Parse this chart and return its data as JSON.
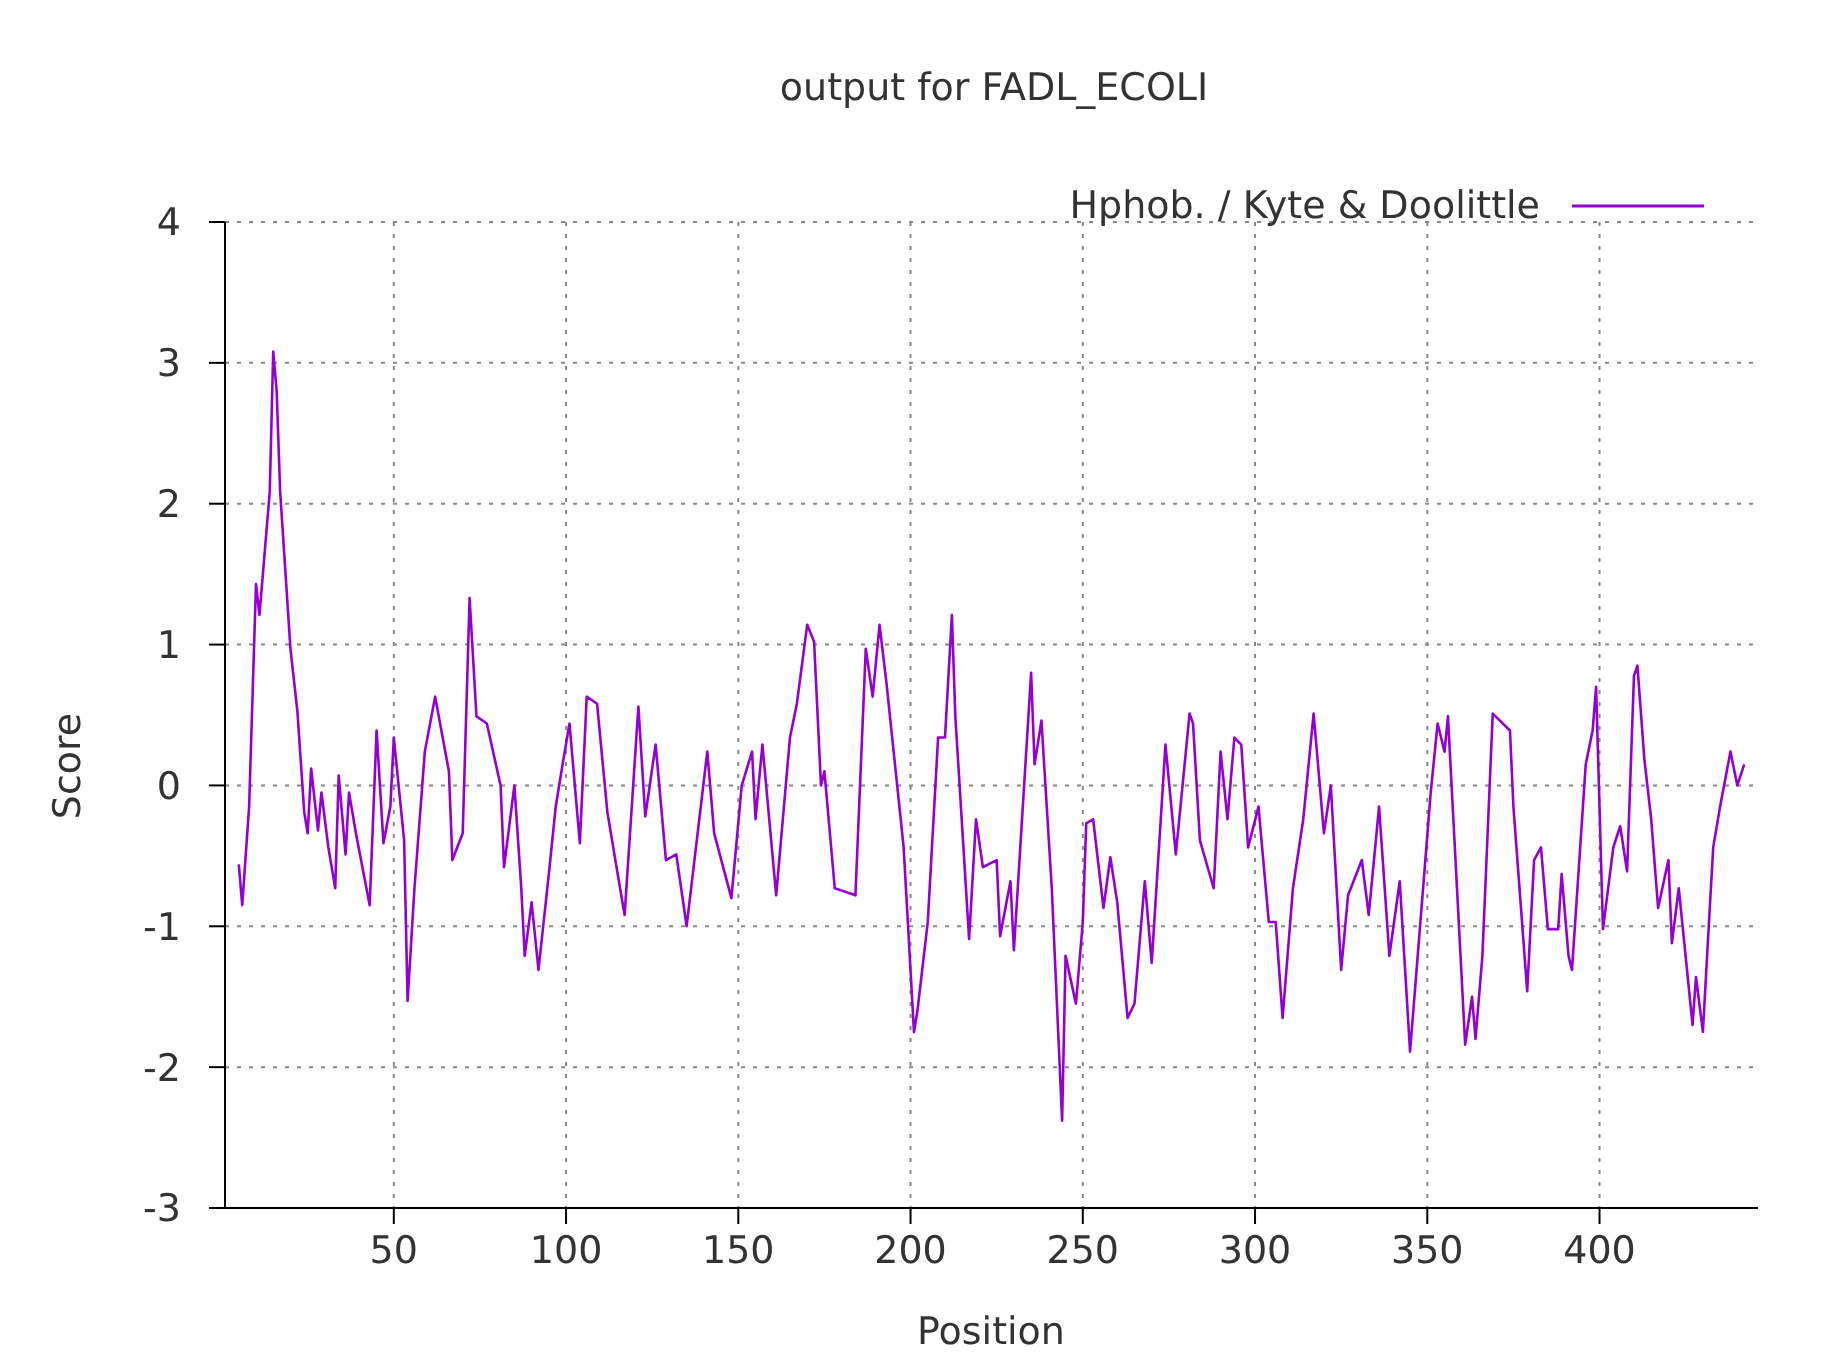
{
  "chart_data": {
    "type": "line",
    "title": "output for FADL_ECOLI",
    "xlabel": "Position",
    "ylabel": "Score",
    "xlim": [
      1,
      446
    ],
    "ylim": [
      -3,
      4
    ],
    "xticks": [
      50,
      100,
      150,
      200,
      250,
      300,
      350,
      400
    ],
    "yticks": [
      -3,
      -2,
      -1,
      0,
      1,
      2,
      3,
      4
    ],
    "grid": true,
    "legend": "top right",
    "marker": "none",
    "line_style": "solid",
    "series": [
      {
        "name": "Hphob. / Kyte & Doolittle",
        "color": "#9400d3",
        "x": [
          5,
          6,
          8,
          10,
          11,
          12,
          14,
          15,
          16,
          17,
          20,
          22,
          24,
          25,
          26,
          28,
          29,
          31,
          33,
          34,
          36,
          37,
          39,
          43,
          45,
          47,
          49,
          50,
          53,
          54,
          56,
          59,
          62,
          66,
          67,
          70,
          72,
          74,
          77,
          81,
          82,
          85,
          87,
          88,
          90,
          92,
          95,
          97,
          99,
          101,
          104,
          106,
          109,
          112,
          115,
          117,
          121,
          123,
          126,
          129,
          132,
          135,
          141,
          143,
          148,
          151,
          154,
          155,
          157,
          161,
          165,
          167,
          170,
          172,
          174,
          175,
          178,
          184,
          187,
          189,
          191,
          193,
          198,
          201,
          202,
          205,
          208,
          210,
          212,
          213,
          217,
          219,
          221,
          225,
          226,
          229,
          230,
          235,
          236,
          238,
          241,
          244,
          245,
          248,
          250,
          251,
          253,
          256,
          258,
          260,
          263,
          265,
          268,
          270,
          274,
          277,
          281,
          282,
          284,
          288,
          290,
          292,
          294,
          296,
          298,
          301,
          304,
          306,
          308,
          311,
          314,
          317,
          320,
          322,
          325,
          327,
          331,
          333,
          336,
          339,
          342,
          345,
          348,
          351,
          353,
          355,
          356,
          358,
          361,
          363,
          364,
          366,
          369,
          374,
          375,
          379,
          381,
          383,
          385,
          388,
          389,
          391,
          392,
          396,
          398,
          399,
          401,
          404,
          406,
          408,
          410,
          411,
          413,
          415,
          417,
          420,
          421,
          423,
          427,
          428,
          430,
          432,
          433,
          435,
          438,
          440,
          442
        ],
        "values": [
          -0.56,
          -0.85,
          -0.15,
          1.43,
          1.21,
          1.5,
          2.09,
          3.08,
          2.8,
          2.09,
          0.97,
          0.53,
          -0.19,
          -0.34,
          0.12,
          -0.32,
          -0.05,
          -0.44,
          -0.73,
          0.07,
          -0.49,
          -0.05,
          -0.34,
          -0.85,
          0.39,
          -0.41,
          -0.15,
          0.34,
          -0.39,
          -1.53,
          -0.73,
          0.24,
          0.63,
          0.1,
          -0.53,
          -0.34,
          1.33,
          0.49,
          0.44,
          0,
          -0.58,
          0,
          -0.73,
          -1.21,
          -0.83,
          -1.31,
          -0.63,
          -0.15,
          0.15,
          0.44,
          -0.41,
          0.63,
          0.58,
          -0.19,
          -0.63,
          -0.92,
          0.56,
          -0.22,
          0.29,
          -0.53,
          -0.49,
          -1.0,
          0.24,
          -0.34,
          -0.8,
          0,
          0.24,
          -0.24,
          0.29,
          -0.78,
          0.34,
          0.58,
          1.14,
          1.02,
          0,
          0.1,
          -0.73,
          -0.78,
          0.97,
          0.63,
          1.14,
          0.73,
          -0.44,
          -1.75,
          -1.6,
          -0.97,
          0.34,
          0.34,
          1.21,
          0.49,
          -1.09,
          -0.24,
          -0.58,
          -0.53,
          -1.07,
          -0.68,
          -1.17,
          0.8,
          0.15,
          0.46,
          -0.73,
          -2.38,
          -1.21,
          -1.55,
          -0.97,
          -0.27,
          -0.24,
          -0.87,
          -0.51,
          -0.83,
          -1.65,
          -1.55,
          -0.68,
          -1.26,
          0.29,
          -0.49,
          0.51,
          0.44,
          -0.39,
          -0.73,
          0.24,
          -0.24,
          0.34,
          0.29,
          -0.44,
          -0.15,
          -0.97,
          -0.97,
          -1.65,
          -0.73,
          -0.24,
          0.51,
          -0.34,
          0,
          -1.31,
          -0.78,
          -0.53,
          -0.92,
          -0.15,
          -1.21,
          -0.68,
          -1.89,
          -0.97,
          -0.05,
          0.44,
          0.24,
          0.49,
          -0.44,
          -1.84,
          -1.5,
          -1.8,
          -1.21,
          0.51,
          0.39,
          -0.15,
          -1.46,
          -0.53,
          -0.44,
          -1.02,
          -1.02,
          -0.63,
          -1.21,
          -1.31,
          0.15,
          0.39,
          0.7,
          -1.02,
          -0.44,
          -0.29,
          -0.61,
          0.78,
          0.85,
          0.19,
          -0.24,
          -0.87,
          -0.53,
          -1.12,
          -0.73,
          -1.7,
          -1.36,
          -1.75,
          -0.87,
          -0.44,
          -0.15,
          0.24,
          0,
          0.15
        ]
      }
    ]
  }
}
